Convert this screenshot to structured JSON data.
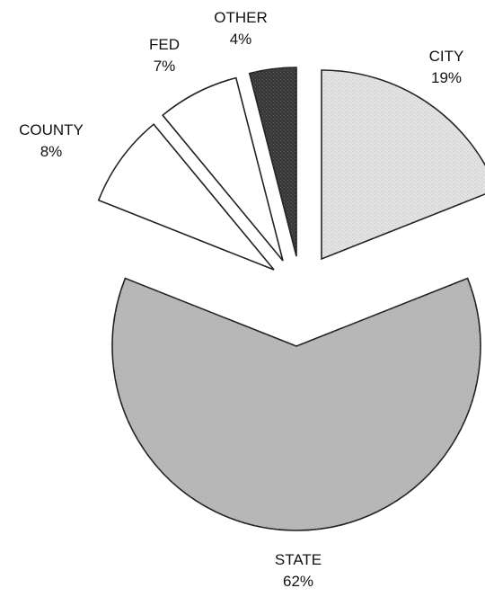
{
  "chart_data": {
    "type": "pie",
    "title": "",
    "slices": [
      {
        "name": "CITY",
        "label": "CITY",
        "value": 19,
        "value_label": "19%",
        "exploded": true,
        "fill": "#e2e2e2"
      },
      {
        "name": "STATE",
        "label": "STATE",
        "value": 62,
        "value_label": "62%",
        "exploded": true,
        "fill": "#b8b8b8"
      },
      {
        "name": "COUNTY",
        "label": "COUNTY",
        "value": 8,
        "value_label": "8%",
        "exploded": true,
        "fill": "#ffffff"
      },
      {
        "name": "FED",
        "label": "FED",
        "value": 7,
        "value_label": "7%",
        "exploded": true,
        "fill": "#ffffff"
      },
      {
        "name": "OTHER",
        "label": "OTHER",
        "value": 4,
        "value_label": "4%",
        "exploded": true,
        "fill": "#3a3a3a"
      }
    ],
    "legend": "none",
    "slice_labels": "outside"
  }
}
